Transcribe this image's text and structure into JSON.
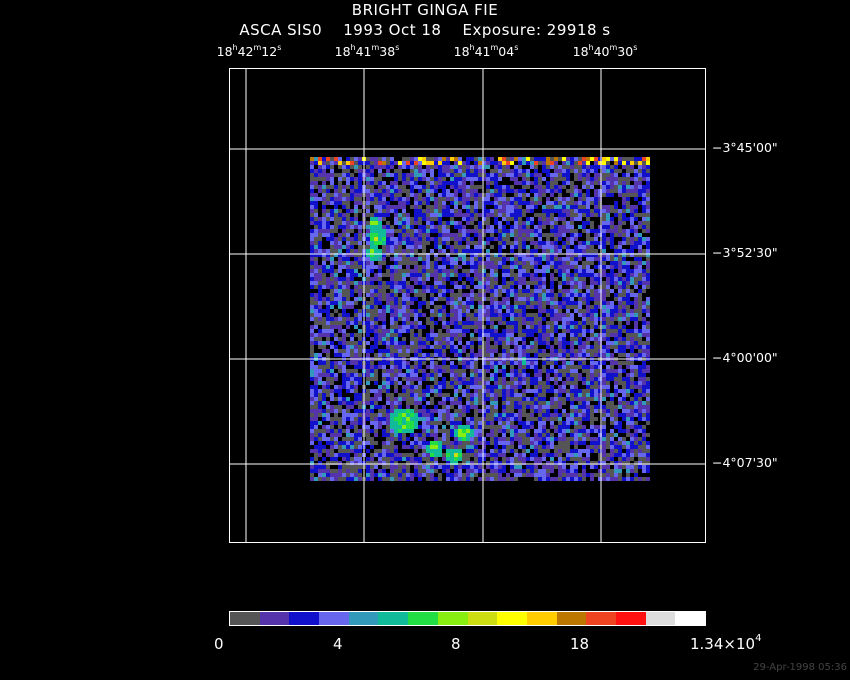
{
  "header": {
    "title": "BRIGHT GINGA FIE",
    "subtitle": "ASCA SIS0    1993 Oct 18    Exposure: 29918 s"
  },
  "ra_ticks": [
    {
      "h": "18",
      "m": "42",
      "s": "12"
    },
    {
      "h": "18",
      "m": "41",
      "s": "38"
    },
    {
      "h": "18",
      "m": "41",
      "s": "04"
    },
    {
      "h": "18",
      "m": "40",
      "s": "30"
    }
  ],
  "dec_ticks": [
    "−3°45'00\"",
    "−3°52'30\"",
    "−4°00'00\"",
    "−4°07'30\""
  ],
  "colorbar": {
    "colors": [
      "#555555",
      "#5533aa",
      "#1111cc",
      "#6666ee",
      "#3399bb",
      "#11bb99",
      "#22dd44",
      "#88ee11",
      "#ccdd11",
      "#ffff00",
      "#ffcc00",
      "#bb7700",
      "#ee4422",
      "#ff1111",
      "#dddddd",
      "#ffffff"
    ],
    "labels": [
      "0",
      "4",
      "8",
      "18"
    ],
    "max_mantissa": "1.34×10",
    "max_exp": "4"
  },
  "timestamp": "29-Apr-1998 05:36"
}
